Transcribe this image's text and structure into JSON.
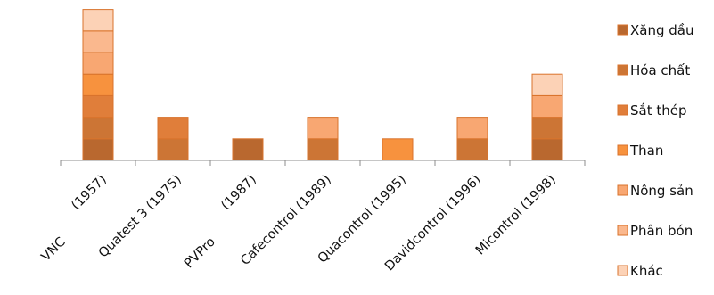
{
  "chart_data": {
    "type": "bar",
    "stacked": true,
    "categories": [
      {
        "line1": "VNC",
        "line2": "(1957)"
      },
      {
        "line1": "Quatest 3 (1975)",
        "line2": ""
      },
      {
        "line1": "PVPro",
        "line2": "(1987)"
      },
      {
        "line1": "Cafecontrol (1989)",
        "line2": ""
      },
      {
        "line1": "Quacontrol (1995)",
        "line2": ""
      },
      {
        "line1": "Davidcontrol (1996)",
        "line2": ""
      },
      {
        "line1": "Micontrol (1998)",
        "line2": ""
      }
    ],
    "series": [
      {
        "name": "Xăng dầu",
        "color": "#b9682f",
        "values": [
          1,
          0,
          1,
          0,
          0,
          0,
          1
        ]
      },
      {
        "name": "Hóa chất",
        "color": "#cc7535",
        "values": [
          1,
          1,
          0,
          1,
          0,
          1,
          1
        ]
      },
      {
        "name": "Sắt thép",
        "color": "#e07e3a",
        "values": [
          1,
          1,
          0,
          0,
          0,
          0,
          0
        ]
      },
      {
        "name": "Than",
        "color": "#f7923e",
        "values": [
          1,
          0,
          0,
          0,
          1,
          0,
          0
        ]
      },
      {
        "name": "Nông sản",
        "color": "#f8a772",
        "values": [
          1,
          0,
          0,
          1,
          0,
          1,
          1
        ]
      },
      {
        "name": "Phân bón",
        "color": "#fab88e",
        "values": [
          1,
          0,
          0,
          0,
          0,
          0,
          0
        ]
      },
      {
        "name": "Khác",
        "color": "#fcd2b6",
        "values": [
          1,
          0,
          0,
          0,
          0,
          0,
          1
        ]
      }
    ],
    "bar_edge_color": "#d9732c",
    "legend_position": "right",
    "grid": false
  }
}
